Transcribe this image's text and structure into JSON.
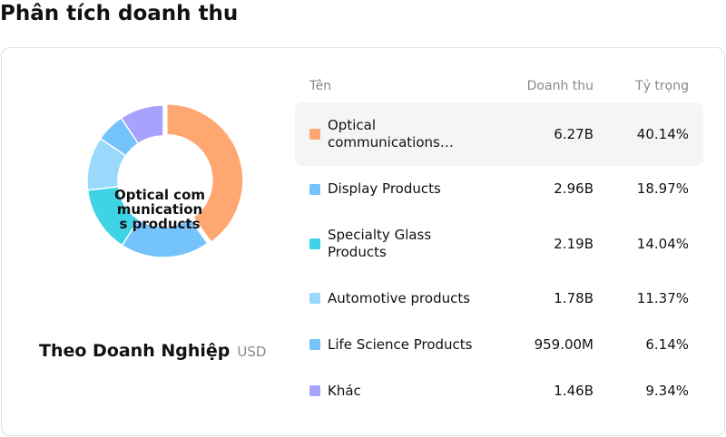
{
  "page": {
    "title": "Phân tích doanh thu"
  },
  "caption": {
    "label": "Theo Doanh Nghiệp",
    "unit": "USD"
  },
  "table": {
    "headers": {
      "name": "Tên",
      "revenue": "Doanh thu",
      "share": "Tỷ trọng"
    },
    "rows": [
      {
        "name": "Optical communications products",
        "revenue": "6.27B",
        "share": "40.14%",
        "color": "#ffa770",
        "highlight": true
      },
      {
        "name": "Display Products",
        "revenue": "2.96B",
        "share": "18.97%",
        "color": "#74c3fb"
      },
      {
        "name": "Specialty Glass Products",
        "revenue": "2.19B",
        "share": "14.04%",
        "color": "#3fd3e6"
      },
      {
        "name": "Automotive products",
        "revenue": "1.78B",
        "share": "11.37%",
        "color": "#99d9fb"
      },
      {
        "name": "Life Science Products",
        "revenue": "959.00M",
        "share": "6.14%",
        "color": "#74c3fb"
      },
      {
        "name": "Khác",
        "revenue": "1.46B",
        "share": "9.34%",
        "color": "#a7a3fc"
      }
    ]
  },
  "chart_data": {
    "type": "pie",
    "variant": "donut",
    "center_label": "Optical communications products",
    "categories": [
      "Optical communications products",
      "Display Products",
      "Specialty Glass Products",
      "Automotive products",
      "Life Science Products",
      "Khác"
    ],
    "values": [
      40.14,
      18.97,
      14.04,
      11.37,
      6.14,
      9.34
    ],
    "colors": [
      "#ffa770",
      "#74c3fb",
      "#3fd3e6",
      "#99d9fb",
      "#74c3fb",
      "#a7a3fc"
    ],
    "highlighted_index": 0
  }
}
